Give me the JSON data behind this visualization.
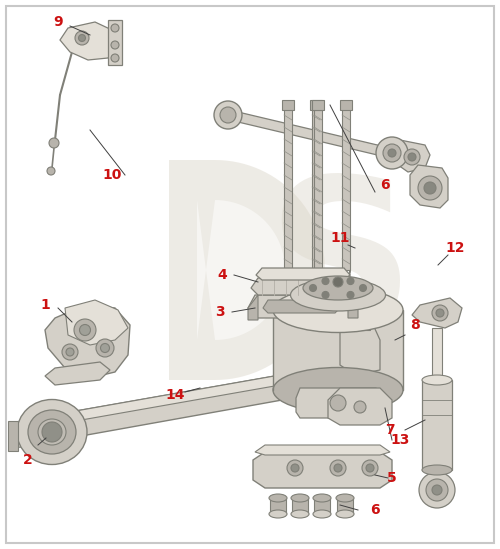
{
  "background_color": "#ffffff",
  "border_color": "#c8c8c8",
  "part_color": "#d4d0c8",
  "part_dark": "#b8b4ac",
  "part_light": "#e4e0d8",
  "stroke_color": "#808078",
  "label_color": "#cc1111",
  "label_fontsize": 10,
  "line_color": "#404040",
  "watermark_color": "#ddd8cc",
  "figsize": [
    5.0,
    5.49
  ],
  "dpi": 100
}
